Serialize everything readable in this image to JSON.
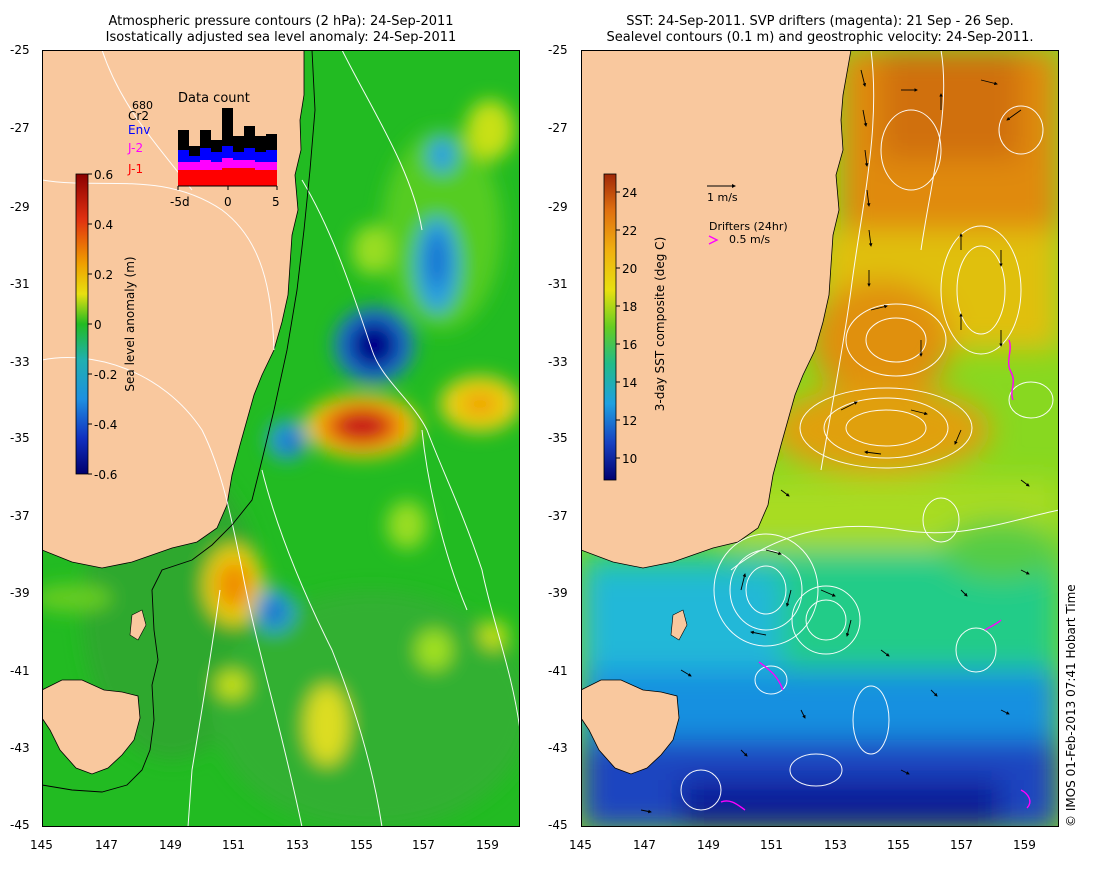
{
  "left_panel": {
    "title_line1": "Atmospheric pressure contours (2 hPa): 24-Sep-2011",
    "title_line2": "Isostatically adjusted sea level anomaly: 24-Sep-2011",
    "lat_ticks": [
      "-25",
      "-27",
      "-29",
      "-31",
      "-33",
      "-35",
      "-37",
      "-39",
      "-41",
      "-43",
      "-45"
    ],
    "lon_ticks": [
      "145",
      "147",
      "149",
      "151",
      "153",
      "155",
      "157",
      "159"
    ],
    "colorbar": {
      "label": "Sea level anomaly (m)",
      "ticks": [
        "0.6",
        "0.4",
        "0.2",
        "0",
        "-0.2",
        "-0.4",
        "-0.6"
      ]
    },
    "data_count": {
      "title": "Data count",
      "max_label": "680",
      "legend": [
        {
          "label": "Cr2",
          "color": "#000000"
        },
        {
          "label": "Env",
          "color": "#0000ff"
        },
        {
          "label": "J-2",
          "color": "#ff00ff"
        },
        {
          "label": "J-1",
          "color": "#ff0000"
        }
      ],
      "x_ticks": [
        "-5d",
        "0",
        "5"
      ]
    }
  },
  "right_panel": {
    "title_line1": "SST: 24-Sep-2011. SVP drifters (magenta): 21 Sep - 26 Sep.",
    "title_line2": "Sealevel contours (0.1 m) and geostrophic velocity: 24-Sep-2011.",
    "lat_ticks": [
      "-25",
      "-27",
      "-29",
      "-31",
      "-33",
      "-35",
      "-37",
      "-39",
      "-41",
      "-43",
      "-45"
    ],
    "lon_ticks": [
      "145",
      "147",
      "149",
      "151",
      "153",
      "155",
      "157",
      "159"
    ],
    "colorbar": {
      "label": "3-day SST composite (deg C)",
      "ticks": [
        "24",
        "22",
        "20",
        "18",
        "16",
        "14",
        "12",
        "10"
      ]
    },
    "velocity_scale_label": "1 m/s",
    "drifters_label": "Drifters (24hr)",
    "drifter_scale_label": "0.5 m/s"
  },
  "credit": "© IMOS 01-Feb-2013 07:41 Hobart Time",
  "colors": {
    "land": "#f9c89e",
    "ocean_mean": "#22bb22",
    "drifter": "#ff00ff"
  }
}
